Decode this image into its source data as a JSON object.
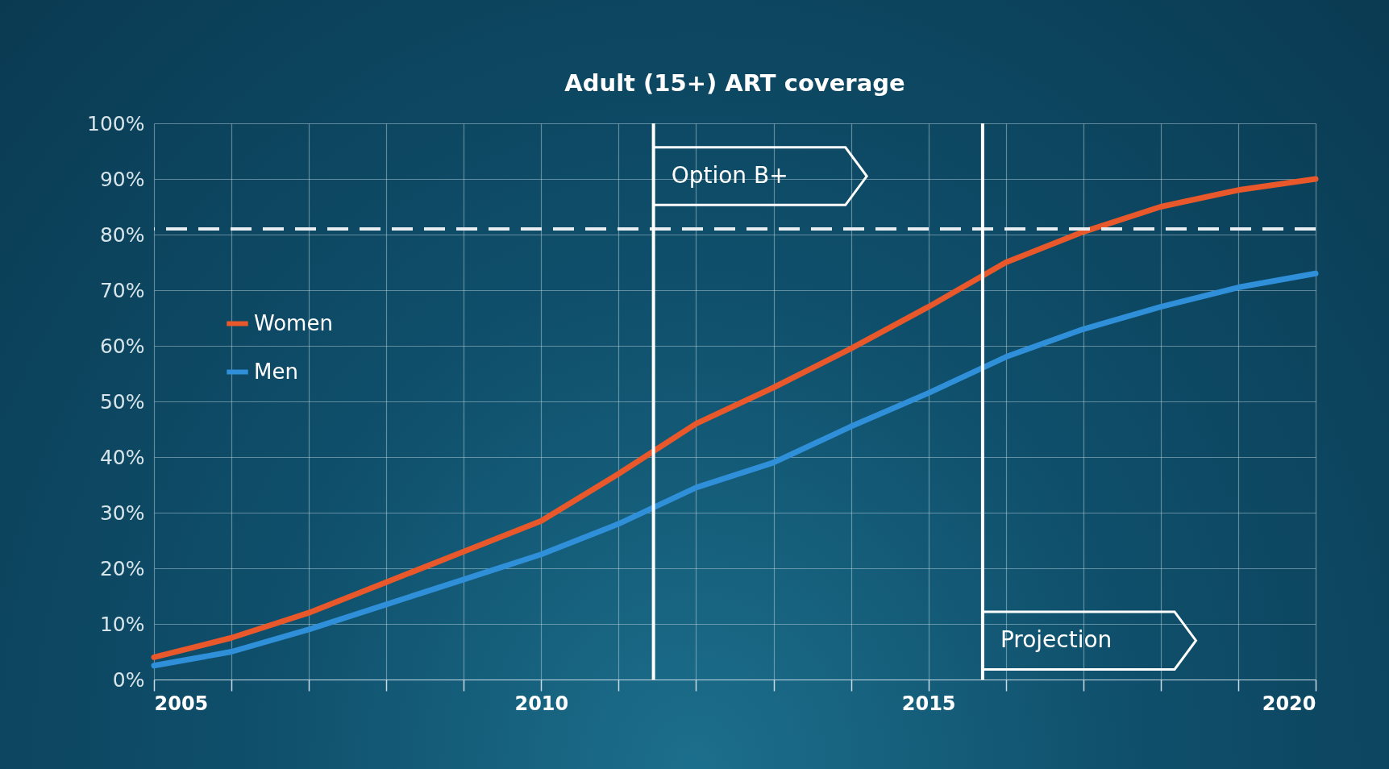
{
  "chart_data": {
    "type": "line",
    "title": "Adult (15+) ART coverage",
    "x": [
      2005,
      2006,
      2007,
      2008,
      2009,
      2010,
      2011,
      2012,
      2013,
      2014,
      2015,
      2016,
      2017,
      2018,
      2019,
      2020
    ],
    "series": [
      {
        "name": "Women",
        "color": "#e8582a",
        "values": [
          4,
          7.5,
          12,
          17.5,
          23,
          28.5,
          37,
          46,
          52.5,
          59.5,
          67,
          75,
          80.5,
          85,
          88,
          90
        ]
      },
      {
        "name": "Men",
        "color": "#2f8fd8",
        "values": [
          2.5,
          5,
          9,
          13.5,
          18,
          22.5,
          28,
          34.5,
          39,
          45.5,
          51.5,
          58,
          63,
          67,
          70.5,
          73
        ]
      }
    ],
    "xlim": [
      2005,
      2020
    ],
    "xticks": [
      2005,
      {
        "value": 2006,
        "label": null
      },
      {
        "value": 2007,
        "label": null
      },
      {
        "value": 2008,
        "label": null
      },
      {
        "value": 2009,
        "label": null
      },
      2010,
      {
        "value": 2011,
        "label": null
      },
      {
        "value": 2012,
        "label": null
      },
      {
        "value": 2013,
        "label": null
      },
      {
        "value": 2014,
        "label": null
      },
      2015,
      {
        "value": 2016,
        "label": null
      },
      {
        "value": 2017,
        "label": null
      },
      {
        "value": 2018,
        "label": null
      },
      {
        "value": 2019,
        "label": null
      },
      2020
    ],
    "ylim": [
      0,
      100
    ],
    "yticks": [
      {
        "value": 0,
        "label": "0%"
      },
      {
        "value": 10,
        "label": "10%"
      },
      {
        "value": 20,
        "label": "20%"
      },
      {
        "value": 30,
        "label": "30%"
      },
      {
        "value": 40,
        "label": "40%"
      },
      {
        "value": 50,
        "label": "50%"
      },
      {
        "value": 60,
        "label": "60%"
      },
      {
        "value": 70,
        "label": "70%"
      },
      {
        "value": 80,
        "label": "80%"
      },
      {
        "value": 90,
        "label": "90%"
      },
      {
        "value": 100,
        "label": "100%"
      }
    ],
    "ref_lines": [
      {
        "axis": "y",
        "value": 81,
        "color": "#e8eef2",
        "line_style": "dashed"
      },
      {
        "axis": "x",
        "value": 2011.45,
        "label": "Option B+",
        "color": "#ffffff",
        "line_style": "solid"
      },
      {
        "axis": "x",
        "value": 2015.7,
        "label": "Projection",
        "color": "#ffffff",
        "line_style": "solid"
      }
    ],
    "grid": true,
    "legend": "top left",
    "line_style": "solid",
    "marker": "none"
  }
}
